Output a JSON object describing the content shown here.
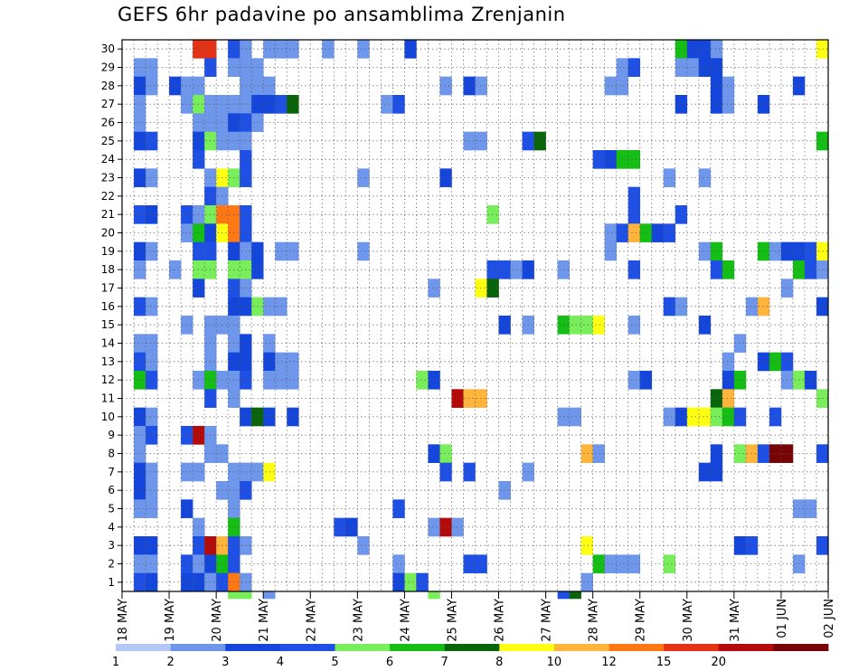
{
  "chart_data": {
    "type": "heatmap",
    "title": "GEFS 6hr padavine po ansamblima Zrenjanin",
    "x_tick_labels": [
      "18 MAY",
      "19 MAY",
      "20 MAY",
      "21 MAY",
      "22 MAY",
      "23 MAY",
      "24 MAY",
      "25 MAY",
      "26 MAY",
      "27 MAY",
      "28 MAY",
      "29 MAY",
      "30 MAY",
      "31 MAY",
      "01 JUN",
      "02 JUN"
    ],
    "y_tick_labels": [
      "1",
      "2",
      "3",
      "4",
      "5",
      "6",
      "7",
      "8",
      "9",
      "10",
      "11",
      "12",
      "13",
      "14",
      "15",
      "16",
      "17",
      "18",
      "19",
      "20",
      "21",
      "22",
      "23",
      "24",
      "25",
      "26",
      "27",
      "28",
      "29",
      "30"
    ],
    "time_steps_per_day": 4,
    "xlim": [
      0,
      60
    ],
    "ylim": [
      0.5,
      30.5
    ],
    "grid": "dotted",
    "colorbar": {
      "labels": [
        "1",
        "2",
        "3",
        "4",
        "5",
        "6",
        "7",
        "8",
        "10",
        "12",
        "15",
        "20"
      ],
      "colors": [
        "#b4c8f5",
        "#6e96eb",
        "#1446dc",
        "#1e50e6",
        "#78ee5a",
        "#14be14",
        "#0a640a",
        "#ffff14",
        "#ffb43c",
        "#ff7814",
        "#e63214",
        "#b40a0a",
        "#780505"
      ]
    },
    "cells": [
      [
        30,
        6,
        10
      ],
      [
        30,
        7,
        10
      ],
      [
        30,
        9,
        3
      ],
      [
        30,
        10,
        1
      ],
      [
        30,
        12,
        1
      ],
      [
        30,
        13,
        1
      ],
      [
        30,
        14,
        1
      ],
      [
        30,
        17,
        1
      ],
      [
        30,
        20,
        1
      ],
      [
        30,
        24,
        2
      ],
      [
        30,
        47,
        5
      ],
      [
        30,
        48,
        2
      ],
      [
        30,
        49,
        2
      ],
      [
        30,
        50,
        1
      ],
      [
        30,
        59,
        7
      ],
      [
        29,
        1,
        1
      ],
      [
        29,
        2,
        1
      ],
      [
        29,
        7,
        3
      ],
      [
        29,
        9,
        1
      ],
      [
        29,
        10,
        1
      ],
      [
        29,
        11,
        1
      ],
      [
        29,
        42,
        1
      ],
      [
        29,
        43,
        3
      ],
      [
        29,
        47,
        1
      ],
      [
        29,
        48,
        1
      ],
      [
        29,
        49,
        2
      ],
      [
        29,
        50,
        2
      ],
      [
        28,
        1,
        2
      ],
      [
        28,
        2,
        1
      ],
      [
        28,
        4,
        2
      ],
      [
        28,
        5,
        1
      ],
      [
        28,
        6,
        1
      ],
      [
        28,
        10,
        1
      ],
      [
        28,
        11,
        1
      ],
      [
        28,
        12,
        1
      ],
      [
        28,
        27,
        1
      ],
      [
        28,
        29,
        2
      ],
      [
        28,
        30,
        1
      ],
      [
        28,
        41,
        1
      ],
      [
        28,
        42,
        1
      ],
      [
        28,
        50,
        2
      ],
      [
        28,
        51,
        1
      ],
      [
        28,
        57,
        2
      ],
      [
        27,
        1,
        1
      ],
      [
        27,
        5,
        1
      ],
      [
        27,
        6,
        4
      ],
      [
        27,
        7,
        1
      ],
      [
        27,
        8,
        1
      ],
      [
        27,
        9,
        1
      ],
      [
        27,
        10,
        1
      ],
      [
        27,
        11,
        2
      ],
      [
        27,
        12,
        2
      ],
      [
        27,
        13,
        3
      ],
      [
        27,
        14,
        6
      ],
      [
        27,
        22,
        1
      ],
      [
        27,
        23,
        3
      ],
      [
        27,
        47,
        2
      ],
      [
        27,
        50,
        2
      ],
      [
        27,
        51,
        1
      ],
      [
        27,
        54,
        2
      ],
      [
        26,
        1,
        1
      ],
      [
        26,
        6,
        1
      ],
      [
        26,
        7,
        1
      ],
      [
        26,
        8,
        1
      ],
      [
        26,
        9,
        2
      ],
      [
        26,
        10,
        3
      ],
      [
        26,
        11,
        1
      ],
      [
        25,
        1,
        2
      ],
      [
        25,
        2,
        3
      ],
      [
        25,
        6,
        2
      ],
      [
        25,
        7,
        4
      ],
      [
        25,
        8,
        1
      ],
      [
        25,
        9,
        1
      ],
      [
        25,
        10,
        1
      ],
      [
        25,
        29,
        1
      ],
      [
        25,
        30,
        1
      ],
      [
        25,
        34,
        3
      ],
      [
        25,
        35,
        6
      ],
      [
        25,
        59,
        5
      ],
      [
        24,
        6,
        3
      ],
      [
        24,
        10,
        3
      ],
      [
        24,
        40,
        3
      ],
      [
        24,
        41,
        2
      ],
      [
        24,
        42,
        5
      ],
      [
        24,
        43,
        5
      ],
      [
        23,
        1,
        2
      ],
      [
        23,
        2,
        1
      ],
      [
        23,
        7,
        1
      ],
      [
        23,
        8,
        7
      ],
      [
        23,
        9,
        4
      ],
      [
        23,
        10,
        3
      ],
      [
        23,
        20,
        1
      ],
      [
        23,
        27,
        2
      ],
      [
        23,
        46,
        1
      ],
      [
        23,
        49,
        1
      ],
      [
        22,
        7,
        3
      ],
      [
        22,
        8,
        1
      ],
      [
        22,
        43,
        3
      ],
      [
        21,
        1,
        3
      ],
      [
        21,
        2,
        2
      ],
      [
        21,
        5,
        3
      ],
      [
        21,
        6,
        1
      ],
      [
        21,
        7,
        4
      ],
      [
        21,
        8,
        9
      ],
      [
        21,
        9,
        9
      ],
      [
        21,
        10,
        3
      ],
      [
        21,
        31,
        4
      ],
      [
        21,
        43,
        3
      ],
      [
        21,
        47,
        3
      ],
      [
        20,
        5,
        1
      ],
      [
        20,
        6,
        5
      ],
      [
        20,
        7,
        2
      ],
      [
        20,
        8,
        7
      ],
      [
        20,
        9,
        9
      ],
      [
        20,
        10,
        3
      ],
      [
        20,
        41,
        1
      ],
      [
        20,
        42,
        3
      ],
      [
        20,
        43,
        8
      ],
      [
        20,
        44,
        5
      ],
      [
        20,
        45,
        2
      ],
      [
        20,
        46,
        3
      ],
      [
        19,
        1,
        2
      ],
      [
        19,
        2,
        1
      ],
      [
        19,
        6,
        3
      ],
      [
        19,
        7,
        3
      ],
      [
        19,
        9,
        2
      ],
      [
        19,
        10,
        1
      ],
      [
        19,
        11,
        2
      ],
      [
        19,
        13,
        1
      ],
      [
        19,
        14,
        1
      ],
      [
        19,
        20,
        1
      ],
      [
        19,
        41,
        1
      ],
      [
        19,
        49,
        1
      ],
      [
        19,
        50,
        5
      ],
      [
        19,
        54,
        5
      ],
      [
        19,
        55,
        1
      ],
      [
        19,
        56,
        2
      ],
      [
        19,
        57,
        2
      ],
      [
        19,
        58,
        3
      ],
      [
        19,
        59,
        7
      ],
      [
        18,
        1,
        1
      ],
      [
        18,
        4,
        1
      ],
      [
        18,
        6,
        4
      ],
      [
        18,
        7,
        4
      ],
      [
        18,
        9,
        4
      ],
      [
        18,
        10,
        4
      ],
      [
        18,
        11,
        2
      ],
      [
        18,
        31,
        3
      ],
      [
        18,
        32,
        3
      ],
      [
        18,
        33,
        1
      ],
      [
        18,
        34,
        2
      ],
      [
        18,
        37,
        1
      ],
      [
        18,
        43,
        3
      ],
      [
        18,
        50,
        3
      ],
      [
        18,
        51,
        5
      ],
      [
        18,
        57,
        5
      ],
      [
        18,
        58,
        3
      ],
      [
        18,
        59,
        1
      ],
      [
        17,
        6,
        2
      ],
      [
        17,
        9,
        3
      ],
      [
        17,
        10,
        1
      ],
      [
        17,
        26,
        1
      ],
      [
        17,
        30,
        7
      ],
      [
        17,
        31,
        6
      ],
      [
        17,
        56,
        1
      ],
      [
        16,
        1,
        3
      ],
      [
        16,
        2,
        1
      ],
      [
        16,
        9,
        2
      ],
      [
        16,
        10,
        2
      ],
      [
        16,
        11,
        4
      ],
      [
        16,
        12,
        1
      ],
      [
        16,
        13,
        1
      ],
      [
        16,
        46,
        3
      ],
      [
        16,
        47,
        1
      ],
      [
        16,
        53,
        1
      ],
      [
        16,
        54,
        8
      ],
      [
        16,
        59,
        2
      ],
      [
        15,
        5,
        1
      ],
      [
        15,
        7,
        1
      ],
      [
        15,
        8,
        1
      ],
      [
        15,
        9,
        1
      ],
      [
        15,
        32,
        2
      ],
      [
        15,
        34,
        1
      ],
      [
        15,
        37,
        5
      ],
      [
        15,
        38,
        4
      ],
      [
        15,
        39,
        4
      ],
      [
        15,
        40,
        7
      ],
      [
        15,
        43,
        1
      ],
      [
        15,
        49,
        2
      ],
      [
        14,
        1,
        1
      ],
      [
        14,
        2,
        1
      ],
      [
        14,
        7,
        1
      ],
      [
        14,
        9,
        1
      ],
      [
        14,
        10,
        2
      ],
      [
        14,
        12,
        1
      ],
      [
        14,
        52,
        1
      ],
      [
        13,
        1,
        3
      ],
      [
        13,
        2,
        1
      ],
      [
        13,
        7,
        1
      ],
      [
        13,
        9,
        2
      ],
      [
        13,
        10,
        2
      ],
      [
        13,
        12,
        2
      ],
      [
        13,
        13,
        1
      ],
      [
        13,
        14,
        1
      ],
      [
        13,
        51,
        1
      ],
      [
        13,
        54,
        2
      ],
      [
        13,
        55,
        5
      ],
      [
        13,
        56,
        3
      ],
      [
        12,
        1,
        5
      ],
      [
        12,
        2,
        3
      ],
      [
        12,
        6,
        1
      ],
      [
        12,
        7,
        5
      ],
      [
        12,
        8,
        1
      ],
      [
        12,
        9,
        1
      ],
      [
        12,
        10,
        3
      ],
      [
        12,
        12,
        1
      ],
      [
        12,
        13,
        1
      ],
      [
        12,
        14,
        1
      ],
      [
        12,
        25,
        4
      ],
      [
        12,
        26,
        2
      ],
      [
        12,
        43,
        1
      ],
      [
        12,
        44,
        2
      ],
      [
        12,
        51,
        2
      ],
      [
        12,
        52,
        5
      ],
      [
        12,
        56,
        1
      ],
      [
        12,
        57,
        4
      ],
      [
        12,
        58,
        2
      ],
      [
        11,
        7,
        3
      ],
      [
        11,
        9,
        1
      ],
      [
        11,
        28,
        11
      ],
      [
        11,
        29,
        8
      ],
      [
        11,
        30,
        8
      ],
      [
        11,
        50,
        6
      ],
      [
        11,
        51,
        8
      ],
      [
        11,
        59,
        4
      ],
      [
        10,
        1,
        2
      ],
      [
        10,
        2,
        1
      ],
      [
        10,
        10,
        2
      ],
      [
        10,
        11,
        6
      ],
      [
        10,
        12,
        2
      ],
      [
        10,
        14,
        2
      ],
      [
        10,
        37,
        1
      ],
      [
        10,
        38,
        1
      ],
      [
        10,
        46,
        1
      ],
      [
        10,
        47,
        2
      ],
      [
        10,
        48,
        7
      ],
      [
        10,
        49,
        7
      ],
      [
        10,
        50,
        4
      ],
      [
        10,
        51,
        5
      ],
      [
        10,
        52,
        3
      ],
      [
        10,
        55,
        3
      ],
      [
        9,
        1,
        1
      ],
      [
        9,
        2,
        3
      ],
      [
        9,
        5,
        3
      ],
      [
        9,
        6,
        11
      ],
      [
        9,
        7,
        1
      ],
      [
        8,
        1,
        1
      ],
      [
        8,
        7,
        1
      ],
      [
        8,
        8,
        1
      ],
      [
        8,
        26,
        2
      ],
      [
        8,
        27,
        4
      ],
      [
        8,
        39,
        8
      ],
      [
        8,
        40,
        1
      ],
      [
        8,
        50,
        2
      ],
      [
        8,
        52,
        4
      ],
      [
        8,
        53,
        8
      ],
      [
        8,
        54,
        3
      ],
      [
        8,
        55,
        12
      ],
      [
        8,
        56,
        12
      ],
      [
        8,
        59,
        3
      ],
      [
        7,
        1,
        2
      ],
      [
        7,
        2,
        1
      ],
      [
        7,
        5,
        1
      ],
      [
        7,
        6,
        1
      ],
      [
        7,
        9,
        1
      ],
      [
        7,
        10,
        1
      ],
      [
        7,
        11,
        1
      ],
      [
        7,
        12,
        7
      ],
      [
        7,
        27,
        3
      ],
      [
        7,
        29,
        3
      ],
      [
        7,
        34,
        1
      ],
      [
        7,
        49,
        2
      ],
      [
        7,
        50,
        2
      ],
      [
        6,
        1,
        2
      ],
      [
        6,
        2,
        1
      ],
      [
        6,
        8,
        1
      ],
      [
        6,
        9,
        1
      ],
      [
        6,
        10,
        3
      ],
      [
        6,
        32,
        1
      ],
      [
        5,
        1,
        1
      ],
      [
        5,
        2,
        1
      ],
      [
        5,
        5,
        2
      ],
      [
        5,
        9,
        1
      ],
      [
        5,
        23,
        3
      ],
      [
        5,
        57,
        1
      ],
      [
        5,
        58,
        1
      ],
      [
        4,
        6,
        1
      ],
      [
        4,
        9,
        5
      ],
      [
        4,
        18,
        3
      ],
      [
        4,
        19,
        2
      ],
      [
        4,
        26,
        1
      ],
      [
        4,
        27,
        11
      ],
      [
        4,
        28,
        1
      ],
      [
        3,
        1,
        2
      ],
      [
        3,
        2,
        2
      ],
      [
        3,
        6,
        3
      ],
      [
        3,
        7,
        11
      ],
      [
        3,
        8,
        8
      ],
      [
        3,
        9,
        3
      ],
      [
        3,
        10,
        1
      ],
      [
        3,
        20,
        1
      ],
      [
        3,
        39,
        7
      ],
      [
        3,
        52,
        2
      ],
      [
        3,
        53,
        3
      ],
      [
        3,
        59,
        3
      ],
      [
        2,
        1,
        1
      ],
      [
        2,
        2,
        1
      ],
      [
        2,
        5,
        3
      ],
      [
        2,
        6,
        1
      ],
      [
        2,
        7,
        2
      ],
      [
        2,
        8,
        5
      ],
      [
        2,
        9,
        3
      ],
      [
        2,
        23,
        1
      ],
      [
        2,
        29,
        3
      ],
      [
        2,
        30,
        3
      ],
      [
        2,
        40,
        5
      ],
      [
        2,
        41,
        1
      ],
      [
        2,
        42,
        1
      ],
      [
        2,
        43,
        1
      ],
      [
        2,
        46,
        4
      ],
      [
        2,
        57,
        1
      ],
      [
        1,
        1,
        3
      ],
      [
        1,
        2,
        2
      ],
      [
        1,
        5,
        2
      ],
      [
        1,
        6,
        2
      ],
      [
        1,
        7,
        1
      ],
      [
        1,
        8,
        3
      ],
      [
        1,
        9,
        9
      ],
      [
        1,
        10,
        1
      ],
      [
        1,
        23,
        2
      ],
      [
        1,
        24,
        4
      ],
      [
        1,
        25,
        3
      ],
      [
        1,
        39,
        1
      ],
      [
        0,
        9,
        4
      ],
      [
        0,
        10,
        4
      ],
      [
        0,
        12,
        1
      ],
      [
        0,
        26,
        4
      ],
      [
        0,
        37,
        3
      ],
      [
        0,
        38,
        6
      ]
    ]
  }
}
